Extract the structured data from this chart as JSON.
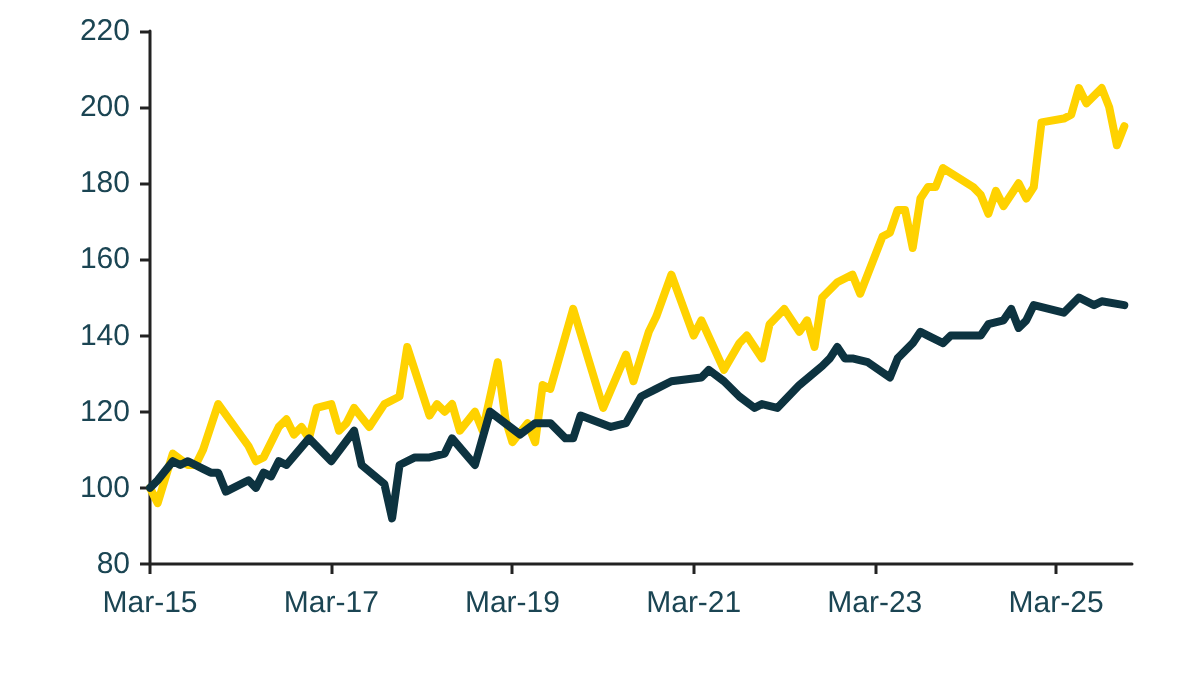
{
  "chart_data": {
    "type": "line",
    "xlim": [
      "2015-03",
      "2026-01"
    ],
    "xticks": [
      {
        "value": "2015-03",
        "label": "Mar-15"
      },
      {
        "value": "2017-03",
        "label": "Mar-17"
      },
      {
        "value": "2019-03",
        "label": "Mar-19"
      },
      {
        "value": "2021-03",
        "label": "Mar-21"
      },
      {
        "value": "2023-03",
        "label": "Mar-23"
      },
      {
        "value": "2025-03",
        "label": "Mar-25"
      }
    ],
    "ylim": [
      80,
      220
    ],
    "yticks": [
      80,
      100,
      120,
      140,
      160,
      180,
      200,
      220
    ],
    "grid": false,
    "marker": "none",
    "line_style": "solid",
    "series": [
      {
        "color": "#ffd200",
        "x": [
          "2015-03",
          "2015-04",
          "2015-06",
          "2015-08",
          "2015-09",
          "2015-10",
          "2015-12",
          "2016-04",
          "2016-05",
          "2016-06",
          "2016-08",
          "2016-09",
          "2016-10",
          "2016-11",
          "2016-12",
          "2017-01",
          "2017-03",
          "2017-04",
          "2017-05",
          "2017-06",
          "2017-08",
          "2017-10",
          "2017-12",
          "2018-01",
          "2018-04",
          "2018-05",
          "2018-06",
          "2018-07",
          "2018-08",
          "2018-10",
          "2018-11",
          "2019-01",
          "2019-02",
          "2019-03",
          "2019-05",
          "2019-06",
          "2019-07",
          "2019-08",
          "2019-11",
          "2020-03",
          "2020-06",
          "2020-07",
          "2020-09",
          "2020-10",
          "2020-12",
          "2021-03",
          "2021-04",
          "2021-07",
          "2021-09",
          "2021-10",
          "2021-12",
          "2022-01",
          "2022-03",
          "2022-05",
          "2022-06",
          "2022-07",
          "2022-08",
          "2022-10",
          "2022-12",
          "2023-01",
          "2023-04",
          "2023-05",
          "2023-06",
          "2023-07",
          "2023-08",
          "2023-09",
          "2023-10",
          "2023-11",
          "2023-12",
          "2024-04",
          "2024-05",
          "2024-06",
          "2024-07",
          "2024-08",
          "2024-10",
          "2024-11",
          "2024-12",
          "2025-01",
          "2025-04",
          "2025-05",
          "2025-06",
          "2025-07",
          "2025-09",
          "2025-10",
          "2025-11",
          "2025-12"
        ],
        "values": [
          100,
          96,
          109,
          106,
          106,
          110,
          122,
          111,
          107,
          108,
          116,
          118,
          114,
          116,
          113,
          121,
          122,
          115,
          117,
          121,
          116,
          122,
          124,
          137,
          119,
          122,
          120,
          122,
          115,
          120,
          115,
          133,
          118,
          112,
          117,
          112,
          127,
          126,
          147,
          121,
          135,
          128,
          141,
          145,
          156,
          140,
          144,
          131,
          138,
          140,
          134,
          143,
          147,
          141,
          144,
          137,
          150,
          154,
          156,
          151,
          166,
          167,
          173,
          173,
          163,
          176,
          179,
          179,
          184,
          179,
          177,
          172,
          178,
          174,
          180,
          176,
          179,
          196,
          197,
          198,
          205,
          201,
          205,
          200,
          190,
          195
        ]
      },
      {
        "color": "#0d3340",
        "x": [
          "2015-03",
          "2015-04",
          "2015-06",
          "2015-07",
          "2015-08",
          "2015-10",
          "2015-11",
          "2015-12",
          "2016-01",
          "2016-04",
          "2016-05",
          "2016-06",
          "2016-07",
          "2016-08",
          "2016-09",
          "2016-12",
          "2017-03",
          "2017-06",
          "2017-07",
          "2017-10",
          "2017-11",
          "2017-12",
          "2018-02",
          "2018-04",
          "2018-06",
          "2018-07",
          "2018-10",
          "2018-12",
          "2019-04",
          "2019-06",
          "2019-08",
          "2019-10",
          "2019-11",
          "2019-12",
          "2020-04",
          "2020-06",
          "2020-08",
          "2020-10",
          "2020-12",
          "2021-04",
          "2021-05",
          "2021-07",
          "2021-09",
          "2021-11",
          "2021-12",
          "2022-02",
          "2022-05",
          "2022-08",
          "2022-09",
          "2022-10",
          "2022-11",
          "2022-12",
          "2023-02",
          "2023-05",
          "2023-06",
          "2023-08",
          "2023-09",
          "2023-10",
          "2023-12",
          "2024-01",
          "2024-05",
          "2024-06",
          "2024-08",
          "2024-09",
          "2024-10",
          "2024-11",
          "2024-12",
          "2025-04",
          "2025-06",
          "2025-08",
          "2025-09",
          "2025-12"
        ],
        "values": [
          100,
          102,
          107,
          106,
          107,
          105,
          104,
          104,
          99,
          102,
          100,
          104,
          103,
          107,
          106,
          113,
          107,
          115,
          106,
          101,
          92,
          106,
          108,
          108,
          109,
          113,
          106,
          120,
          114,
          117,
          117,
          113,
          113,
          119,
          116,
          117,
          124,
          126,
          128,
          129,
          131,
          128,
          124,
          121,
          122,
          121,
          127,
          132,
          134,
          137,
          134,
          134,
          133,
          129,
          134,
          138,
          141,
          140,
          138,
          140,
          140,
          143,
          144,
          147,
          142,
          144,
          148,
          146,
          150,
          148,
          149,
          148
        ]
      }
    ]
  }
}
